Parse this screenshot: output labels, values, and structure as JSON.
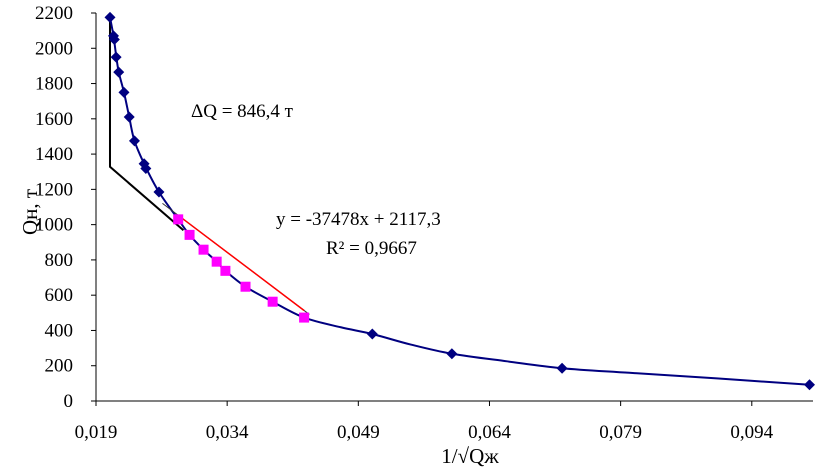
{
  "chart_data": {
    "type": "scatter",
    "title": "",
    "xlabel": "1/√Qж",
    "ylabel": "Qн, т",
    "xlim": [
      0.019,
      0.101
    ],
    "ylim": [
      0,
      2200
    ],
    "xticks": [
      0.019,
      0.034,
      0.049,
      0.064,
      0.079,
      0.094
    ],
    "xtick_labels": [
      "0,019",
      "0,034",
      "0,049",
      "0,064",
      "0,079",
      "0,094"
    ],
    "yticks": [
      0,
      200,
      400,
      600,
      800,
      1000,
      1200,
      1400,
      1600,
      1800,
      2000,
      2200
    ],
    "ytick_labels": [
      "0",
      "200",
      "400",
      "600",
      "800",
      "1000",
      "1200",
      "1400",
      "1600",
      "1800",
      "2000",
      "2200"
    ],
    "grid": false,
    "legend": "none",
    "colors": {
      "series_main": "#000080",
      "series_fit": "#ff00ff",
      "trendline": "#ff0000",
      "construction": "#000000"
    },
    "series": [
      {
        "marker": "diamond",
        "points": [
          [
            0.0206,
            2175
          ],
          [
            0.021,
            2070
          ],
          [
            0.0211,
            2050
          ],
          [
            0.0213,
            1950
          ],
          [
            0.0216,
            1865
          ],
          [
            0.0222,
            1750
          ],
          [
            0.0228,
            1610
          ],
          [
            0.0234,
            1475
          ],
          [
            0.0245,
            1345
          ],
          [
            0.0247,
            1318
          ],
          [
            0.0262,
            1185
          ],
          [
            0.0506,
            380
          ],
          [
            0.0597,
            268
          ],
          [
            0.0723,
            186
          ],
          [
            0.1006,
            92
          ]
        ]
      },
      {
        "marker": "square",
        "points": [
          [
            0.0284,
            1030
          ],
          [
            0.0297,
            942
          ],
          [
            0.0313,
            858
          ],
          [
            0.0328,
            790
          ],
          [
            0.0338,
            738
          ],
          [
            0.0361,
            648
          ],
          [
            0.0392,
            563
          ],
          [
            0.0428,
            473
          ]
        ]
      }
    ],
    "curve": [
      [
        0.0206,
        2175
      ],
      [
        0.021,
        2070
      ],
      [
        0.0213,
        1960
      ],
      [
        0.0216,
        1865
      ],
      [
        0.0222,
        1750
      ],
      [
        0.0228,
        1610
      ],
      [
        0.0234,
        1475
      ],
      [
        0.0246,
        1335
      ],
      [
        0.0262,
        1185
      ],
      [
        0.0284,
        1030
      ],
      [
        0.0297,
        942
      ],
      [
        0.0313,
        858
      ],
      [
        0.0328,
        790
      ],
      [
        0.0338,
        738
      ],
      [
        0.0361,
        648
      ],
      [
        0.0392,
        563
      ],
      [
        0.0428,
        473
      ],
      [
        0.047,
        418
      ],
      [
        0.0506,
        380
      ],
      [
        0.055,
        320
      ],
      [
        0.0597,
        268
      ],
      [
        0.066,
        225
      ],
      [
        0.0723,
        186
      ],
      [
        0.08,
        160
      ],
      [
        0.09,
        128
      ],
      [
        0.1006,
        92
      ]
    ],
    "trendline": {
      "slope": -37478,
      "intercept": 2117.3,
      "x_range": [
        0.0284,
        0.0428
      ],
      "label_equation": "y = -37478x + 2117,3",
      "label_r2": "R² = 0,9667"
    },
    "construction_line": {
      "points": [
        [
          0.0206,
          2175
        ],
        [
          0.0206,
          1328
        ],
        [
          0.029,
          968
        ]
      ]
    },
    "annotations": {
      "delta_q": "ΔQ = 846,4 т"
    }
  }
}
